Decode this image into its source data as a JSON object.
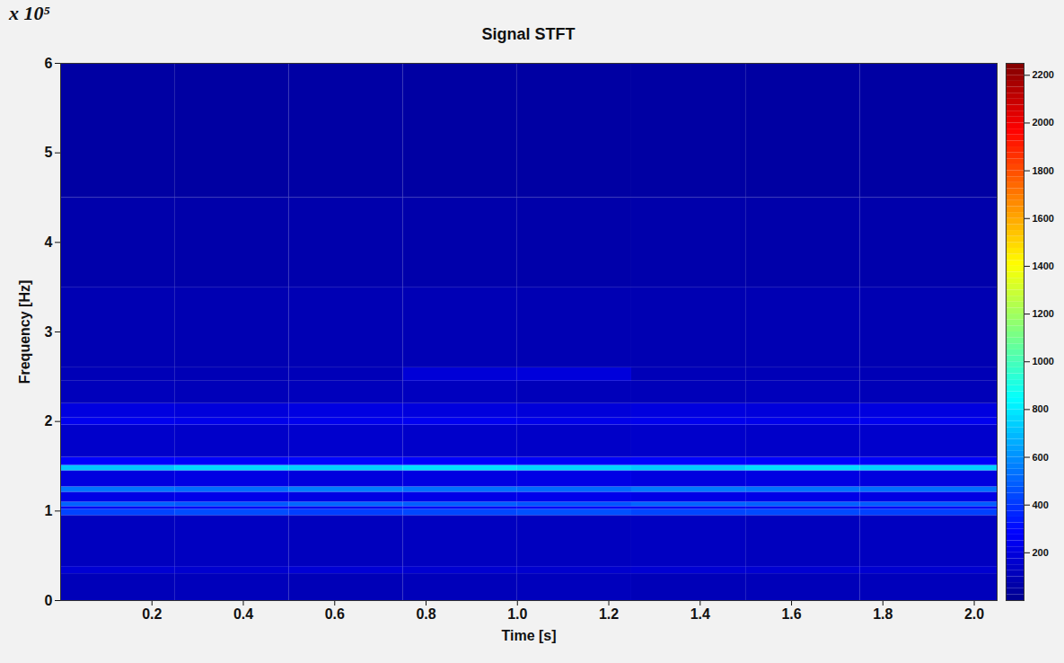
{
  "chart_data": {
    "type": "heatmap",
    "title": "Signal STFT",
    "x_label": "Time [s]",
    "y_label": "Frequency [Hz]",
    "y_scale_label": "x 10⁵",
    "xlim": [
      0,
      2.05
    ],
    "xticks": [
      0.2,
      0.4,
      0.6,
      0.8,
      {
        "value": 1,
        "label": "1.0"
      },
      1.2,
      1.4,
      1.6,
      1.8,
      {
        "value": 2,
        "label": "2.0"
      }
    ],
    "ylim": [
      0,
      6
    ],
    "yticks": [
      0,
      1,
      2,
      3,
      4,
      5,
      6
    ],
    "grid": false,
    "time_edges": [
      0,
      0.25,
      0.5,
      0.75,
      1.0,
      1.25,
      1.5,
      1.75,
      2.05
    ],
    "frequency_edges": [
      0,
      0.3,
      0.38,
      0.95,
      1.02,
      1.05,
      1.1,
      1.21,
      1.27,
      1.45,
      1.51,
      1.6,
      1.96,
      2.04,
      2.2,
      2.45,
      2.6,
      3.5,
      4.5,
      6
    ],
    "cells": [
      [
        105,
        110,
        100,
        108,
        112,
        104,
        106,
        110
      ],
      [
        170,
        160,
        175,
        165,
        158,
        172,
        168,
        162
      ],
      [
        120,
        125,
        118,
        122,
        120,
        126,
        119,
        123
      ],
      [
        430,
        450,
        420,
        440,
        460,
        435,
        445,
        425
      ],
      [
        250,
        260,
        240,
        255,
        265,
        250,
        245,
        258
      ],
      [
        500,
        480,
        510,
        490,
        470,
        505,
        495,
        485
      ],
      [
        215,
        225,
        210,
        220,
        230,
        218,
        222,
        212
      ],
      [
        540,
        520,
        560,
        530,
        515,
        550,
        535,
        525
      ],
      [
        200,
        210,
        195,
        205,
        215,
        200,
        208,
        198
      ],
      [
        720,
        760,
        740,
        780,
        750,
        730,
        770,
        745
      ],
      [
        280,
        270,
        290,
        275,
        265,
        285,
        278,
        272
      ],
      [
        150,
        145,
        155,
        148,
        142,
        150,
        146,
        152
      ],
      [
        240,
        230,
        235,
        245,
        228,
        238,
        232,
        242
      ],
      [
        200,
        190,
        205,
        195,
        185,
        198,
        192,
        202
      ],
      [
        110,
        105,
        112,
        120,
        108,
        106,
        110,
        104
      ],
      [
        100,
        98,
        102,
        180,
        190,
        104,
        100,
        98
      ],
      [
        90,
        88,
        92,
        95,
        90,
        89,
        91,
        87
      ],
      [
        70,
        68,
        72,
        70,
        69,
        71,
        67,
        70
      ],
      [
        50,
        48,
        52,
        50,
        49,
        51,
        48,
        50
      ]
    ],
    "color_range": [
      0,
      2250
    ],
    "color_ticks": [
      200,
      400,
      600,
      800,
      1000,
      1200,
      1400,
      1600,
      1800,
      2000,
      2200
    ]
  }
}
